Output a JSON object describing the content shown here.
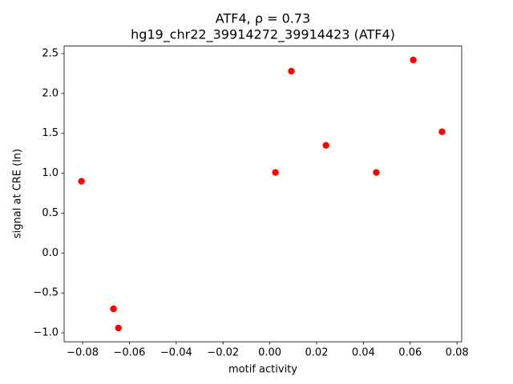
{
  "chart_data": {
    "type": "scatter",
    "title": "ATF4, ρ = 0.73",
    "subtitle": "hg19_chr22_39914272_39914423 (ATF4)",
    "x_label": "motif activity",
    "y_label": "signal at CRE (ln)",
    "color": "#ff0000",
    "series": [
      {
        "x": [
          -0.0805,
          -0.0668,
          -0.0647,
          0.0024,
          0.0092,
          0.024,
          0.0455,
          0.0613,
          0.0736
        ],
        "values": [
          0.9,
          -0.7,
          -0.94,
          1.01,
          2.28,
          1.35,
          1.01,
          2.42,
          1.52
        ]
      }
    ],
    "xlim": [
      -0.0879,
      0.082
    ],
    "ylim": [
      -1.112,
      2.594
    ],
    "xticks": [
      {
        "value": -0.08,
        "label": "−0.08"
      },
      {
        "value": -0.06,
        "label": "−0.06"
      },
      {
        "value": -0.04,
        "label": "−0.04"
      },
      {
        "value": -0.02,
        "label": "−0.02"
      },
      {
        "value": 0,
        "label": "0.00"
      },
      0.02,
      0.04,
      0.06,
      0.08
    ],
    "yticks": [
      {
        "value": -1,
        "label": "−1.0"
      },
      {
        "value": -0.5,
        "label": "−0.5"
      },
      {
        "value": 0,
        "label": "0.0"
      },
      0.5,
      {
        "value": 1,
        "label": "1.0"
      },
      1.5,
      {
        "value": 2,
        "label": "2.0"
      },
      2.5
    ],
    "grid": false
  }
}
